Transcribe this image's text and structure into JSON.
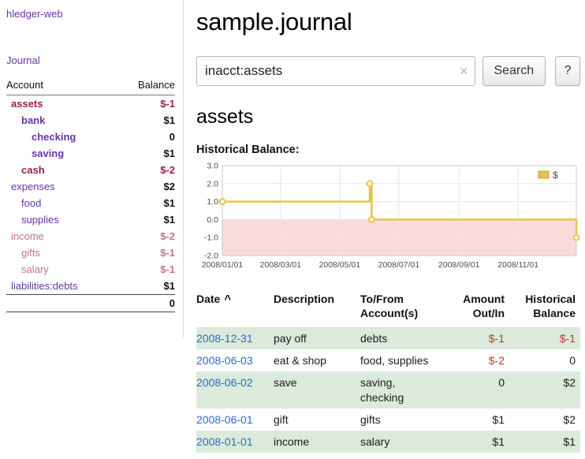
{
  "colors": {
    "purple": "#6633aa",
    "negDark": "#9c2140",
    "negLight": "#c2738c",
    "tableNeg": "#c0392b",
    "blue": "#3366cc",
    "rowGreen": "#dbeadb",
    "gold": "#e8c34c",
    "goldBorder": "#c9a12e",
    "pink": "#fbdada",
    "grid": "#e6e6e6"
  },
  "sidebar": {
    "brand": "hledger-web",
    "journal_label": "Journal",
    "accounts": {
      "col_account": "Account",
      "col_balance": "Balance",
      "rows": [
        {
          "name": "assets",
          "balance": "$-1",
          "level": 1,
          "emph": true,
          "negative": true
        },
        {
          "name": "bank",
          "balance": "$1",
          "level": 2,
          "emph": true,
          "negative": false
        },
        {
          "name": "checking",
          "balance": "0",
          "level": 3,
          "emph": true,
          "negative": false
        },
        {
          "name": "saving",
          "balance": "$1",
          "level": 3,
          "emph": true,
          "negative": false
        },
        {
          "name": "cash",
          "balance": "$-2",
          "level": 2,
          "emph": true,
          "negative": true
        },
        {
          "name": "expenses",
          "balance": "$2",
          "level": 1,
          "emph": false,
          "negative": false
        },
        {
          "name": "food",
          "balance": "$1",
          "level": 2,
          "emph": false,
          "negative": false
        },
        {
          "name": "supplies",
          "balance": "$1",
          "level": 2,
          "emph": false,
          "negative": false
        },
        {
          "name": "income",
          "balance": "$-2",
          "level": 1,
          "emph": false,
          "negative": true
        },
        {
          "name": "gifts",
          "balance": "$-1",
          "level": 2,
          "emph": false,
          "negative": true
        },
        {
          "name": "salary",
          "balance": "$-1",
          "level": 2,
          "emph": false,
          "negative": true
        },
        {
          "name": "liabilities:debts",
          "balance": "$1",
          "level": 1,
          "emph": false,
          "negative": false
        }
      ],
      "total": "0"
    }
  },
  "main": {
    "title": "sample.journal",
    "search": {
      "value": "inacct:assets",
      "clear_icon": "×",
      "button_label": "Search",
      "help_label": "?"
    },
    "account_heading": "assets",
    "chart_title": "Historical Balance:"
  },
  "chart_data": {
    "type": "line",
    "title": "Historical Balance",
    "step": true,
    "x_is_time": true,
    "xrange": [
      "2008-01-01",
      "2008-12-31"
    ],
    "ylim": [
      -2,
      3
    ],
    "ytick_values": [
      3,
      2,
      1,
      0,
      -1,
      -2
    ],
    "yticks": [
      "3.0",
      "2.0",
      "1.0",
      "0.0",
      "-1.0",
      "-2.0"
    ],
    "xticks": [
      {
        "label": "2008/01/01",
        "date": "2008-01-01"
      },
      {
        "label": "2008/03/01",
        "date": "2008-03-01"
      },
      {
        "label": "2008/05/01",
        "date": "2008-05-01"
      },
      {
        "label": "2008/07/01",
        "date": "2008-07-01"
      },
      {
        "label": "2008/09/01",
        "date": "2008-09-01"
      },
      {
        "label": "2008/11/01",
        "date": "2008-11-01"
      }
    ],
    "legend": {
      "label": "$",
      "position": "top-right"
    },
    "negative_region": true,
    "series": [
      {
        "name": "$",
        "points": [
          [
            "2008-01-01",
            1
          ],
          [
            "2008-06-01",
            2
          ],
          [
            "2008-06-03",
            0
          ],
          [
            "2008-12-31",
            -1
          ]
        ]
      }
    ]
  },
  "register": {
    "columns": [
      {
        "label": "Date",
        "align": "left",
        "sort_icon": "^",
        "sortable": true
      },
      {
        "label": "Description",
        "align": "left"
      },
      {
        "label": "To/From\nAccount(s)",
        "align": "left"
      },
      {
        "label": "Amount\nOut/In",
        "align": "right"
      },
      {
        "label": "Historical\nBalance",
        "align": "right"
      }
    ],
    "rows": [
      {
        "date": "2008-12-31",
        "description": "pay off",
        "accounts": "debts",
        "amount": "$-1",
        "amount_negative": true,
        "balance": "$-1",
        "balance_negative": true
      },
      {
        "date": "2008-06-03",
        "description": "eat & shop",
        "accounts": "food, supplies",
        "amount": "$-2",
        "amount_negative": true,
        "balance": "0",
        "balance_negative": false
      },
      {
        "date": "2008-06-02",
        "description": "save",
        "accounts": "saving, checking",
        "amount": "0",
        "amount_negative": false,
        "balance": "$2",
        "balance_negative": false
      },
      {
        "date": "2008-06-01",
        "description": "gift",
        "accounts": "gifts",
        "amount": "$1",
        "amount_negative": false,
        "balance": "$2",
        "balance_negative": false
      },
      {
        "date": "2008-01-01",
        "description": "income",
        "accounts": "salary",
        "amount": "$1",
        "amount_negative": false,
        "balance": "$1",
        "balance_negative": false
      }
    ]
  }
}
